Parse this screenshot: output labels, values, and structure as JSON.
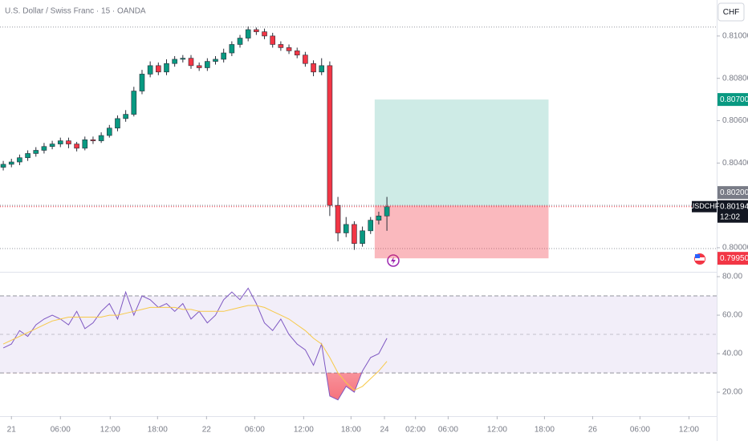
{
  "header": {
    "title": "U.S. Dollar / Swiss Franc · 15 · OANDA",
    "currency": "CHF"
  },
  "chart_data": [
    {
      "type": "candlestick",
      "symbol": "USDCHF",
      "x": [
        -1,
        0,
        1,
        2,
        3,
        4,
        5,
        6,
        7,
        8,
        9,
        10,
        11,
        12,
        13,
        14,
        15,
        16,
        17,
        18,
        19,
        20,
        21,
        22,
        23,
        24,
        25,
        26,
        27,
        28,
        29,
        30,
        31,
        32,
        33,
        34,
        35,
        36,
        37,
        38,
        39,
        40,
        41,
        42,
        43,
        44,
        45,
        46
      ],
      "open": [
        0.8038,
        0.80394,
        0.80405,
        0.80425,
        0.80445,
        0.8046,
        0.80478,
        0.8049,
        0.80505,
        0.8049,
        0.8047,
        0.8051,
        0.80505,
        0.8053,
        0.80565,
        0.8061,
        0.8063,
        0.8074,
        0.8082,
        0.8086,
        0.8083,
        0.8087,
        0.8089,
        0.80895,
        0.8086,
        0.8085,
        0.8088,
        0.8089,
        0.8092,
        0.8096,
        0.8099,
        0.8103,
        0.8102,
        0.81,
        0.8096,
        0.80945,
        0.8093,
        0.8091,
        0.8087,
        0.8083,
        0.8086,
        0.802,
        0.8007,
        0.8011,
        0.8002,
        0.8008,
        0.8013,
        0.8015
      ],
      "high": [
        0.8041,
        0.8042,
        0.8044,
        0.8046,
        0.80475,
        0.80495,
        0.80505,
        0.8052,
        0.8052,
        0.805,
        0.80525,
        0.80525,
        0.80545,
        0.8058,
        0.80625,
        0.8065,
        0.8076,
        0.8084,
        0.8088,
        0.80875,
        0.8089,
        0.80905,
        0.8091,
        0.8091,
        0.80875,
        0.80895,
        0.80905,
        0.8094,
        0.80975,
        0.81005,
        0.81045,
        0.8104,
        0.81035,
        0.81015,
        0.80975,
        0.8096,
        0.80945,
        0.80925,
        0.80885,
        0.80895,
        0.8088,
        0.8024,
        0.80145,
        0.80125,
        0.801,
        0.80145,
        0.8017,
        0.8024
      ],
      "low": [
        0.80365,
        0.8038,
        0.8039,
        0.8041,
        0.8043,
        0.80445,
        0.80465,
        0.80475,
        0.8047,
        0.80455,
        0.8046,
        0.8049,
        0.80495,
        0.8052,
        0.8055,
        0.80595,
        0.8062,
        0.80725,
        0.80805,
        0.80815,
        0.80815,
        0.80855,
        0.80875,
        0.80845,
        0.80835,
        0.80835,
        0.80865,
        0.80875,
        0.80905,
        0.80945,
        0.80975,
        0.81005,
        0.80985,
        0.80945,
        0.8093,
        0.80915,
        0.80895,
        0.80855,
        0.8081,
        0.80815,
        0.8015,
        0.8003,
        0.8005,
        0.7999,
        0.80005,
        0.80065,
        0.8011,
        0.8008
      ],
      "close": [
        0.80394,
        0.80405,
        0.80425,
        0.80445,
        0.8046,
        0.80478,
        0.8049,
        0.80505,
        0.8049,
        0.8047,
        0.8051,
        0.80505,
        0.8053,
        0.80565,
        0.8061,
        0.8063,
        0.8074,
        0.8082,
        0.8086,
        0.8083,
        0.8087,
        0.8089,
        0.80895,
        0.8086,
        0.8085,
        0.8088,
        0.8089,
        0.8092,
        0.8096,
        0.8099,
        0.8103,
        0.8102,
        0.81,
        0.8096,
        0.80945,
        0.8093,
        0.8091,
        0.8087,
        0.8083,
        0.8086,
        0.802,
        0.8007,
        0.8011,
        0.8002,
        0.8008,
        0.8013,
        0.8015,
        0.80194
      ],
      "up_color": "#089981",
      "down_color": "#f23645",
      "xlim": [
        -1.4,
        86.4
      ],
      "ylim": [
        0.7989,
        0.8117
      ],
      "yticks": [
        {
          "value": 0.8,
          "label": "0.80000"
        },
        {
          "value": 0.804,
          "label": "0.80400"
        },
        {
          "value": 0.806,
          "label": "0.80600"
        },
        {
          "value": 0.808,
          "label": "0.80800"
        },
        {
          "value": 0.81,
          "label": "0.81000"
        }
      ],
      "horizontal_lines": [
        0.81042,
        0.79996
      ],
      "last_price": 0.80194,
      "countdown": "12:02",
      "position": {
        "x_start": 44.5,
        "x_end": 65.8,
        "entry": {
          "value": 0.802,
          "label": "0.80200"
        },
        "target": {
          "value": 0.807,
          "label": "0.80700"
        },
        "stop": {
          "value": 0.7995,
          "label": "0.79950"
        },
        "profit_color": "#089981",
        "loss_color": "#f23645"
      }
    },
    {
      "type": "line",
      "x": [
        -1,
        0,
        1,
        2,
        3,
        4,
        5,
        6,
        7,
        8,
        9,
        10,
        11,
        12,
        13,
        14,
        15,
        16,
        17,
        18,
        19,
        20,
        21,
        22,
        23,
        24,
        25,
        26,
        27,
        28,
        29,
        30,
        31,
        32,
        33,
        34,
        35,
        36,
        37,
        38,
        39,
        40,
        41,
        42,
        43,
        44,
        45,
        46
      ],
      "series": [
        {
          "color": "#7e57c2",
          "values": [
            43,
            45,
            52,
            49,
            55,
            58,
            60,
            58,
            55,
            62,
            53,
            56,
            62,
            66,
            58,
            72,
            60,
            70,
            68,
            64,
            66,
            62,
            66,
            58,
            62,
            56,
            60,
            68,
            72,
            68,
            74,
            66,
            56,
            52,
            58,
            50,
            45,
            42,
            34,
            45,
            18,
            16,
            23,
            20,
            31,
            38,
            40,
            48
          ]
        },
        {
          "color": "#f7c948",
          "values": [
            45,
            47,
            49,
            51,
            53,
            55,
            57,
            58,
            59,
            59,
            59,
            59,
            59,
            60,
            60,
            61,
            62,
            63,
            64,
            64,
            64,
            64,
            63,
            63,
            62,
            62,
            62,
            62,
            63,
            64,
            65,
            65,
            64,
            62,
            60,
            58,
            55,
            52,
            48,
            45,
            38,
            30,
            25,
            21,
            23,
            27,
            31,
            36
          ]
        }
      ],
      "bands": {
        "upper": 70,
        "middle": 50,
        "lower": 30
      },
      "xlim": [
        -1.4,
        86.4
      ],
      "ylim": [
        9.2,
        82.1
      ],
      "yticks": [
        {
          "value": 20,
          "label": "20.00"
        },
        {
          "value": 40,
          "label": "40.00"
        },
        {
          "value": 60,
          "label": "60.00"
        },
        {
          "value": 80,
          "label": "80.00"
        }
      ],
      "xticks": [
        {
          "value": 0,
          "label": "21"
        },
        {
          "value": 6,
          "label": "06:00"
        },
        {
          "value": 12.1,
          "label": "12:00"
        },
        {
          "value": 17.9,
          "label": "18:00"
        },
        {
          "value": 23.9,
          "label": "22"
        },
        {
          "value": 29.8,
          "label": "06:00"
        },
        {
          "value": 35.8,
          "label": "12:00"
        },
        {
          "value": 41.6,
          "label": "18:00"
        },
        {
          "value": 45.7,
          "label": "24"
        },
        {
          "value": 49.5,
          "label": "02:00"
        },
        {
          "value": 53.5,
          "label": "06:00"
        },
        {
          "value": 59.5,
          "label": "12:00"
        },
        {
          "value": 65.3,
          "label": "18:00"
        },
        {
          "value": 71.2,
          "label": "26"
        },
        {
          "value": 77,
          "label": "06:00"
        },
        {
          "value": 83,
          "label": "12:00"
        }
      ]
    }
  ]
}
